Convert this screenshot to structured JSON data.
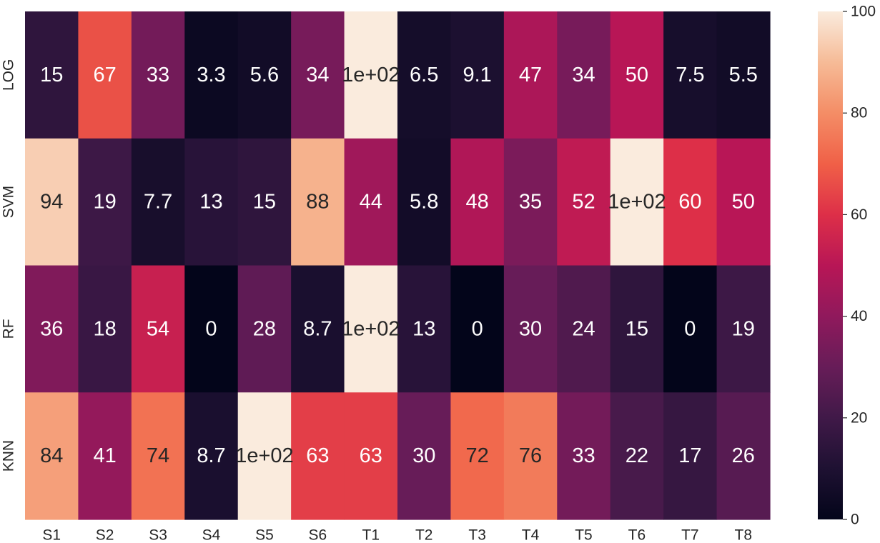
{
  "chart_data": {
    "type": "heatmap",
    "title": "",
    "xlabel": "",
    "ylabel": "",
    "x_categories": [
      "S1",
      "S2",
      "S3",
      "S4",
      "S5",
      "S6",
      "T1",
      "T2",
      "T3",
      "T4",
      "T5",
      "T6",
      "T7",
      "T8"
    ],
    "y_categories": [
      "LOG",
      "SVM",
      "RF",
      "KNN"
    ],
    "values": [
      [
        15,
        67,
        33,
        3.3,
        5.6,
        34,
        100,
        6.5,
        9.1,
        47,
        34,
        50,
        7.5,
        5.5
      ],
      [
        94,
        19,
        7.7,
        13,
        15,
        88,
        44,
        5.8,
        48,
        35,
        52,
        100,
        60,
        50
      ],
      [
        36,
        18,
        54,
        0,
        28,
        8.7,
        100,
        13,
        0,
        30,
        24,
        15,
        0,
        19
      ],
      [
        84,
        41,
        74,
        8.7,
        100,
        63,
        63,
        30,
        72,
        76,
        33,
        22,
        17,
        26
      ]
    ],
    "annotations": [
      [
        "15",
        "67",
        "33",
        "3.3",
        "5.6",
        "34",
        "1e+02",
        "6.5",
        "9.1",
        "47",
        "34",
        "50",
        "7.5",
        "5.5"
      ],
      [
        "94",
        "19",
        "7.7",
        "13",
        "15",
        "88",
        "44",
        "5.8",
        "48",
        "35",
        "52",
        "1e+02",
        "60",
        "50"
      ],
      [
        "36",
        "18",
        "54",
        "0",
        "28",
        "8.7",
        "1e+02",
        "13",
        "0",
        "30",
        "24",
        "15",
        "0",
        "19"
      ],
      [
        "84",
        "41",
        "74",
        "8.7",
        "1e+02",
        "63",
        "63",
        "30",
        "72",
        "76",
        "33",
        "22",
        "17",
        "26"
      ]
    ],
    "colormap": "rocket",
    "vmin": 0,
    "vmax": 100,
    "colorbar_ticks": [
      "0",
      "20",
      "40",
      "60",
      "80",
      "100"
    ],
    "grid": false
  }
}
